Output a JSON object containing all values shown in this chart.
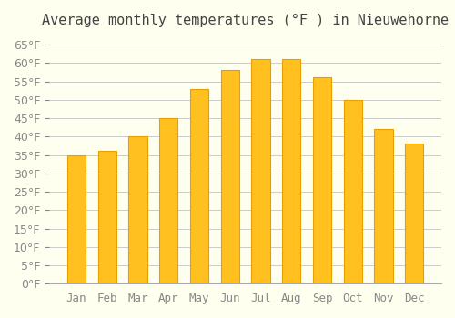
{
  "title": "Average monthly temperatures (°F ) in Nieuwehorne",
  "months": [
    "Jan",
    "Feb",
    "Mar",
    "Apr",
    "May",
    "Jun",
    "Jul",
    "Aug",
    "Sep",
    "Oct",
    "Nov",
    "Dec"
  ],
  "values": [
    35,
    36,
    40,
    45,
    53,
    58,
    61,
    61,
    56,
    50,
    42,
    38
  ],
  "bar_color": "#FFC020",
  "bar_edge_color": "#E8A000",
  "background_color": "#FFFFF0",
  "grid_color": "#CCCCCC",
  "ylim": [
    0,
    67
  ],
  "yticks": [
    0,
    5,
    10,
    15,
    20,
    25,
    30,
    35,
    40,
    45,
    50,
    55,
    60,
    65
  ],
  "title_fontsize": 11,
  "tick_fontsize": 9
}
